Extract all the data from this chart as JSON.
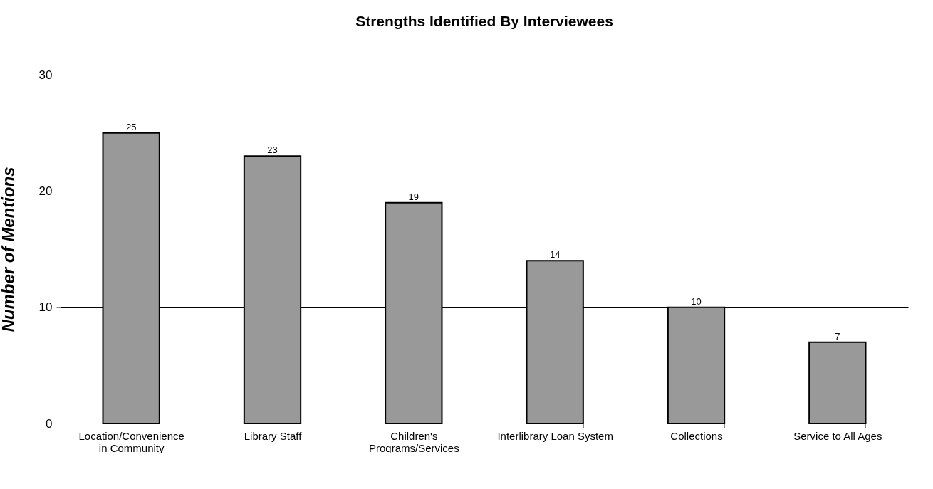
{
  "chart_data": {
    "type": "bar",
    "title": "Strengths Identified By Interviewees",
    "ylabel": "Number of Mentions",
    "categories": [
      "Location/Convenience in Community",
      "Library Staff",
      "Children's Programs/Services",
      "Interlibrary Loan System",
      "Collections",
      "Service to All Ages"
    ],
    "values": [
      25,
      23,
      19,
      14,
      10,
      7
    ],
    "color": "#999999",
    "ylim": [
      0,
      30
    ],
    "yticks": [
      0,
      10,
      20,
      30
    ],
    "grid": "y",
    "data_labels": true
  }
}
